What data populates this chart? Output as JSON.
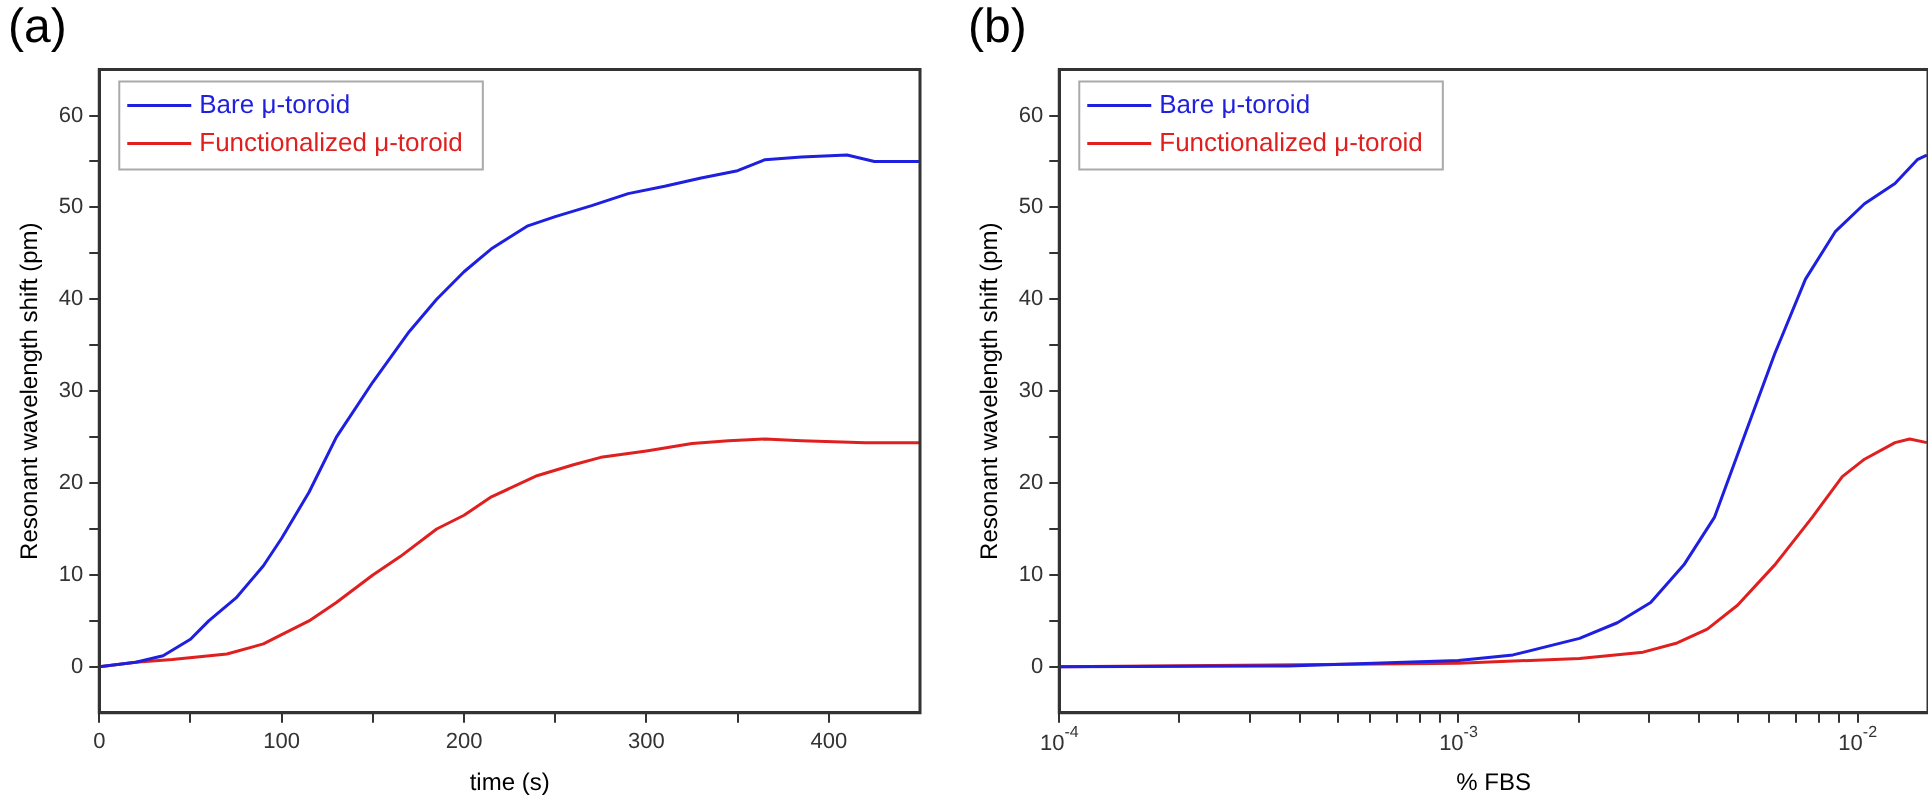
{
  "chart_data": [
    {
      "type": "line",
      "title": "(a)",
      "xlabel": "time (s)",
      "ylabel": "Resonant wavelength shift (pm)",
      "xlim": [
        0,
        450
      ],
      "ylim": [
        -5,
        65
      ],
      "xticks": [
        0,
        {
          "value": 50,
          "label": null
        },
        100,
        {
          "value": 150,
          "label": null
        },
        200,
        {
          "value": 250,
          "label": null
        },
        300,
        {
          "value": 350,
          "label": null
        },
        400
      ],
      "yticks": [
        0,
        {
          "value": 5,
          "label": null
        },
        10,
        {
          "value": 15,
          "label": null
        },
        20,
        {
          "value": 25,
          "label": null
        },
        30,
        {
          "value": 35,
          "label": null
        },
        40,
        {
          "value": 45,
          "label": null
        },
        50,
        {
          "value": 55,
          "label": null
        },
        60
      ],
      "legend": "top left",
      "grid": false,
      "marker": "none",
      "line_style": "solid",
      "series": [
        {
          "name": "Bare μ-toroid",
          "color": "#1f1fe0",
          "x": [
            0,
            20,
            35,
            50,
            60,
            75,
            90,
            100,
            115,
            130,
            150,
            170,
            185,
            200,
            215,
            235,
            250,
            270,
            290,
            310,
            330,
            350,
            365,
            385,
            410,
            425,
            450
          ],
          "values": [
            0,
            0.5,
            1.2,
            3,
            5,
            7.5,
            11,
            14,
            19,
            25,
            31,
            36.5,
            40,
            43,
            45.5,
            48,
            49,
            50.2,
            51.5,
            52.3,
            53.2,
            54,
            55.2,
            55.5,
            55.7,
            55,
            55
          ]
        },
        {
          "name": "Functionalized μ-toroid",
          "color": "#e01f1f",
          "x": [
            0,
            20,
            40,
            55,
            70,
            90,
            100,
            115,
            130,
            150,
            165,
            185,
            200,
            215,
            240,
            260,
            275,
            300,
            325,
            345,
            365,
            385,
            420,
            450
          ],
          "values": [
            0,
            0.5,
            0.8,
            1.1,
            1.4,
            2.5,
            3.5,
            5,
            7,
            10,
            12,
            15,
            16.5,
            18.5,
            20.8,
            22,
            22.8,
            23.5,
            24.3,
            24.6,
            24.8,
            24.6,
            24.4,
            24.4
          ]
        }
      ]
    },
    {
      "type": "line",
      "title": "(b)",
      "xlabel": "% FBS",
      "ylabel": "Resonant wavelength shift (pm)",
      "log": "x",
      "xlim": [
        0.0001,
        0.015
      ],
      "ylim": [
        -5,
        65
      ],
      "xticks": [
        {
          "value": 0.0001,
          "label": "10$^{-4}$"
        },
        {
          "value": 0.0002,
          "label": null
        },
        {
          "value": 0.0003,
          "label": null
        },
        {
          "value": 0.0004,
          "label": null
        },
        {
          "value": 0.0005,
          "label": null
        },
        {
          "value": 0.0006,
          "label": null
        },
        {
          "value": 0.0007,
          "label": null
        },
        {
          "value": 0.0008,
          "label": null
        },
        {
          "value": 0.0009,
          "label": null
        },
        {
          "value": 0.001,
          "label": "10$^{-3}$"
        },
        {
          "value": 0.002,
          "label": null
        },
        {
          "value": 0.003,
          "label": null
        },
        {
          "value": 0.004,
          "label": null
        },
        {
          "value": 0.005,
          "label": null
        },
        {
          "value": 0.006,
          "label": null
        },
        {
          "value": 0.007,
          "label": null
        },
        {
          "value": 0.008,
          "label": null
        },
        {
          "value": 0.009,
          "label": null
        },
        {
          "value": 0.01,
          "label": "10$^{-2}$"
        }
      ],
      "yticks": [
        0,
        {
          "value": 5,
          "label": null
        },
        10,
        {
          "value": 15,
          "label": null
        },
        20,
        {
          "value": 25,
          "label": null
        },
        30,
        {
          "value": 35,
          "label": null
        },
        40,
        {
          "value": 45,
          "label": null
        },
        50,
        {
          "value": 55,
          "label": null
        },
        60
      ],
      "legend": "top left",
      "grid": false,
      "marker": "none",
      "line_style": "solid",
      "series": [
        {
          "name": "Bare μ-toroid",
          "color": "#1f1fe0",
          "x": [
            0.0001,
            0.000374,
            0.001,
            0.00137,
            0.00201,
            0.0025,
            0.00303,
            0.00367,
            0.00438,
            0.00521,
            0.0062,
            0.0074,
            0.0088,
            0.0104,
            0.0124,
            0.0141,
            0.0149
          ],
          "values": [
            0,
            0.1,
            0.7,
            1.3,
            3.1,
            4.8,
            7,
            11.1,
            16.3,
            25.2,
            34.1,
            42.2,
            47.4,
            50.4,
            52.6,
            55.2,
            55.7
          ]
        },
        {
          "name": "Functionalized μ-toroid",
          "color": "#e01f1f",
          "x": [
            0.0001,
            0.001,
            0.00201,
            0.0029,
            0.00353,
            0.0042,
            0.005,
            0.0062,
            0.0077,
            0.00915,
            0.0104,
            0.0124,
            0.0135,
            0.0149
          ],
          "values": [
            0,
            0.4,
            0.9,
            1.6,
            2.6,
            4.1,
            6.7,
            11.1,
            16.3,
            20.7,
            22.6,
            24.4,
            24.8,
            24.4
          ]
        }
      ]
    }
  ]
}
